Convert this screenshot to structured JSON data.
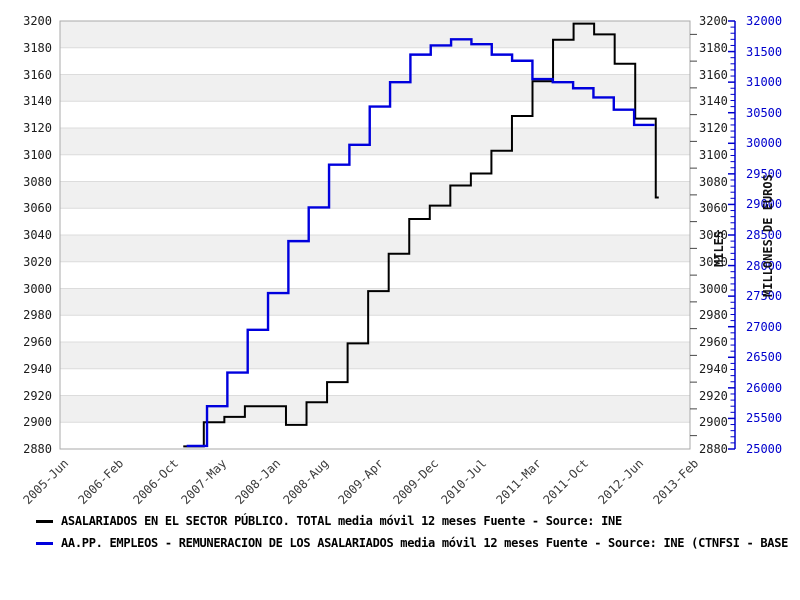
{
  "chart_data": {
    "type": "line",
    "style": "stepped time series, two y axes, alternating horizontal band grid",
    "legend_position": "bottom-left",
    "left_axis": {
      "title": "MILES",
      "min": 2880,
      "max": 3200,
      "tick_step": 20,
      "minor_tick_step": 10,
      "tick_labels": [
        "3200",
        "3180",
        "3160",
        "3140",
        "3120",
        "3100",
        "3080",
        "3060",
        "3040",
        "3020",
        "3000",
        "2980",
        "2960",
        "2940",
        "2920",
        "2900",
        "2880"
      ]
    },
    "right_axis": {
      "title": "MILLONES DE EUROS",
      "min": 25000,
      "max": 32000,
      "tick_step": 500,
      "minor_tick_step": 100,
      "tick_labels": [
        "32000",
        "31500",
        "31000",
        "30500",
        "30000",
        "29500",
        "29000",
        "28500",
        "28000",
        "27500",
        "27000",
        "26500",
        "26000",
        "25500",
        "25000"
      ]
    },
    "x_axis": {
      "total_months": 92,
      "ticks": [
        {
          "label": "2005-Jun",
          "month": 0
        },
        {
          "label": "2006-Feb",
          "month": 8
        },
        {
          "label": "2006-Oct",
          "month": 16
        },
        {
          "label": "2007-May",
          "month": 23
        },
        {
          "label": "2008-Jan",
          "month": 31
        },
        {
          "label": "2008-Aug",
          "month": 38
        },
        {
          "label": "2009-Apr",
          "month": 46
        },
        {
          "label": "2009-Dec",
          "month": 54
        },
        {
          "label": "2010-Jul",
          "month": 61
        },
        {
          "label": "2011-Mar",
          "month": 69
        },
        {
          "label": "2011-Oct",
          "month": 76
        },
        {
          "label": "2012-Jun",
          "month": 84
        }
      ],
      "last_tick": {
        "label": "2013-Feb",
        "month": 92
      }
    },
    "series": [
      {
        "name": "asalariados-sector-publico",
        "legend_label": "ASALARIADOS EN EL SECTOR PÚBLICO. TOTAL media móvil 12 meses  Fuente - Source: INE",
        "axis": "left",
        "color": "#000000",
        "units": "miles",
        "cadence": "quarterly (approx.), starting ~2006-Dec",
        "start_month": 18,
        "step_months": 3,
        "values": [
          2882,
          2900,
          2904,
          2912,
          2912,
          2898,
          2915,
          2930,
          2959,
          2998,
          3026,
          3052,
          3062,
          3077,
          3086,
          3103,
          3129,
          3155,
          3186,
          3198,
          3190,
          3168,
          3127
        ],
        "end_value": 3068
      },
      {
        "name": "aapp-remuneracion-asalariados",
        "legend_label": "AA.PP. EMPLEOS - REMUNERACION DE LOS ASALARIADOS media móvil 12 meses  Fuente - Source: INE (CTNFSI - BASE",
        "axis": "right",
        "color": "#0000dd",
        "units": "millones de euros",
        "cadence": "quarterly (approx.), starting ~2006-Dec",
        "start_month": 18.5,
        "step_months": 2.97,
        "values": [
          25050,
          25700,
          26250,
          26950,
          27550,
          28400,
          28950,
          29650,
          29975,
          30600,
          31000,
          31450,
          31600,
          31700,
          31620,
          31450,
          31350,
          31050,
          31000,
          30900,
          30750,
          30550,
          30300
        ]
      }
    ],
    "colors": {
      "band_gray": "#f0f0f0",
      "band_white": "#ffffff",
      "band_border": "#dcdcdc",
      "plot_border": "#aaaaaa",
      "black_axis_text": "#1c1c1c",
      "blue_axis": "#0000cd",
      "x_label_text": "#3a3a3a"
    }
  }
}
